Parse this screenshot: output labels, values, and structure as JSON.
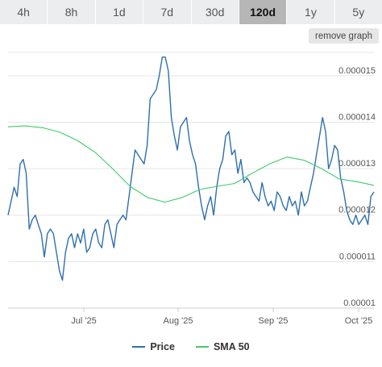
{
  "tabs": [
    {
      "label": "4h"
    },
    {
      "label": "8h"
    },
    {
      "label": "1d"
    },
    {
      "label": "7d"
    },
    {
      "label": "30d"
    },
    {
      "label": "120d",
      "active": true
    },
    {
      "label": "1y"
    },
    {
      "label": "5y"
    }
  ],
  "remove_graph_label": "remove graph",
  "colors": {
    "price": "#2f6fad",
    "sma": "#3ecb6a",
    "grid": "#e6e6e6",
    "active_tab": "#b6b6b6"
  },
  "chart_data": {
    "type": "line",
    "x_ticks": [
      "Jul '25",
      "Aug '25",
      "Sep '25",
      "Oct '25"
    ],
    "y_ticks": [
      "0.000015",
      "0.000014",
      "0.000013",
      "0.000012",
      "0.000011",
      "0.00001"
    ],
    "ylim": [
      1e-05,
      1.55e-05
    ],
    "grid": true,
    "legend_position": "bottom",
    "series": [
      {
        "name": "Price",
        "color": "#2f6fad",
        "values": [
          1.2e-05,
          1.23e-05,
          1.26e-05,
          1.24e-05,
          1.31e-05,
          1.32e-05,
          1.29e-05,
          1.17e-05,
          1.19e-05,
          1.2e-05,
          1.18e-05,
          1.16e-05,
          1.11e-05,
          1.16e-05,
          1.17e-05,
          1.16e-05,
          1.12e-05,
          1.08e-05,
          1.06e-05,
          1.12e-05,
          1.15e-05,
          1.16e-05,
          1.13e-05,
          1.16e-05,
          1.14e-05,
          1.17e-05,
          1.12e-05,
          1.13e-05,
          1.16e-05,
          1.17e-05,
          1.14e-05,
          1.13e-05,
          1.18e-05,
          1.19e-05,
          1.16e-05,
          1.13e-05,
          1.18e-05,
          1.19e-05,
          1.2e-05,
          1.19e-05,
          1.24e-05,
          1.29e-05,
          1.34e-05,
          1.33e-05,
          1.32e-05,
          1.31e-05,
          1.35e-05,
          1.45e-05,
          1.46e-05,
          1.47e-05,
          1.5e-05,
          1.54e-05,
          1.54e-05,
          1.51e-05,
          1.41e-05,
          1.37e-05,
          1.34e-05,
          1.39e-05,
          1.4e-05,
          1.41e-05,
          1.36e-05,
          1.33e-05,
          1.31e-05,
          1.26e-05,
          1.22e-05,
          1.19e-05,
          1.22e-05,
          1.24e-05,
          1.2e-05,
          1.26e-05,
          1.3e-05,
          1.32e-05,
          1.37e-05,
          1.38e-05,
          1.33e-05,
          1.34e-05,
          1.29e-05,
          1.32e-05,
          1.27e-05,
          1.28e-05,
          1.27e-05,
          1.25e-05,
          1.24e-05,
          1.23e-05,
          1.27e-05,
          1.24e-05,
          1.22e-05,
          1.23e-05,
          1.21e-05,
          1.25e-05,
          1.24e-05,
          1.22e-05,
          1.21e-05,
          1.24e-05,
          1.22e-05,
          1.23e-05,
          1.2e-05,
          1.25e-05,
          1.22e-05,
          1.23e-05,
          1.26e-05,
          1.29e-05,
          1.33e-05,
          1.37e-05,
          1.41e-05,
          1.38e-05,
          1.3e-05,
          1.32e-05,
          1.35e-05,
          1.34e-05,
          1.28e-05,
          1.25e-05,
          1.21e-05,
          1.19e-05,
          1.18e-05,
          1.2e-05,
          1.18e-05,
          1.19e-05,
          1.2e-05,
          1.18e-05,
          1.24e-05,
          1.25e-05
        ]
      },
      {
        "name": "SMA 50",
        "color": "#3ecb6a",
        "values": [
          1.39e-05,
          1.392e-05,
          1.388e-05,
          1.378e-05,
          1.36e-05,
          1.335e-05,
          1.3e-05,
          1.262e-05,
          1.238e-05,
          1.228e-05,
          1.238e-05,
          1.255e-05,
          1.262e-05,
          1.268e-05,
          1.29e-05,
          1.31e-05,
          1.325e-05,
          1.318e-05,
          1.3e-05,
          1.278e-05,
          1.272e-05,
          1.264e-05
        ]
      }
    ]
  }
}
